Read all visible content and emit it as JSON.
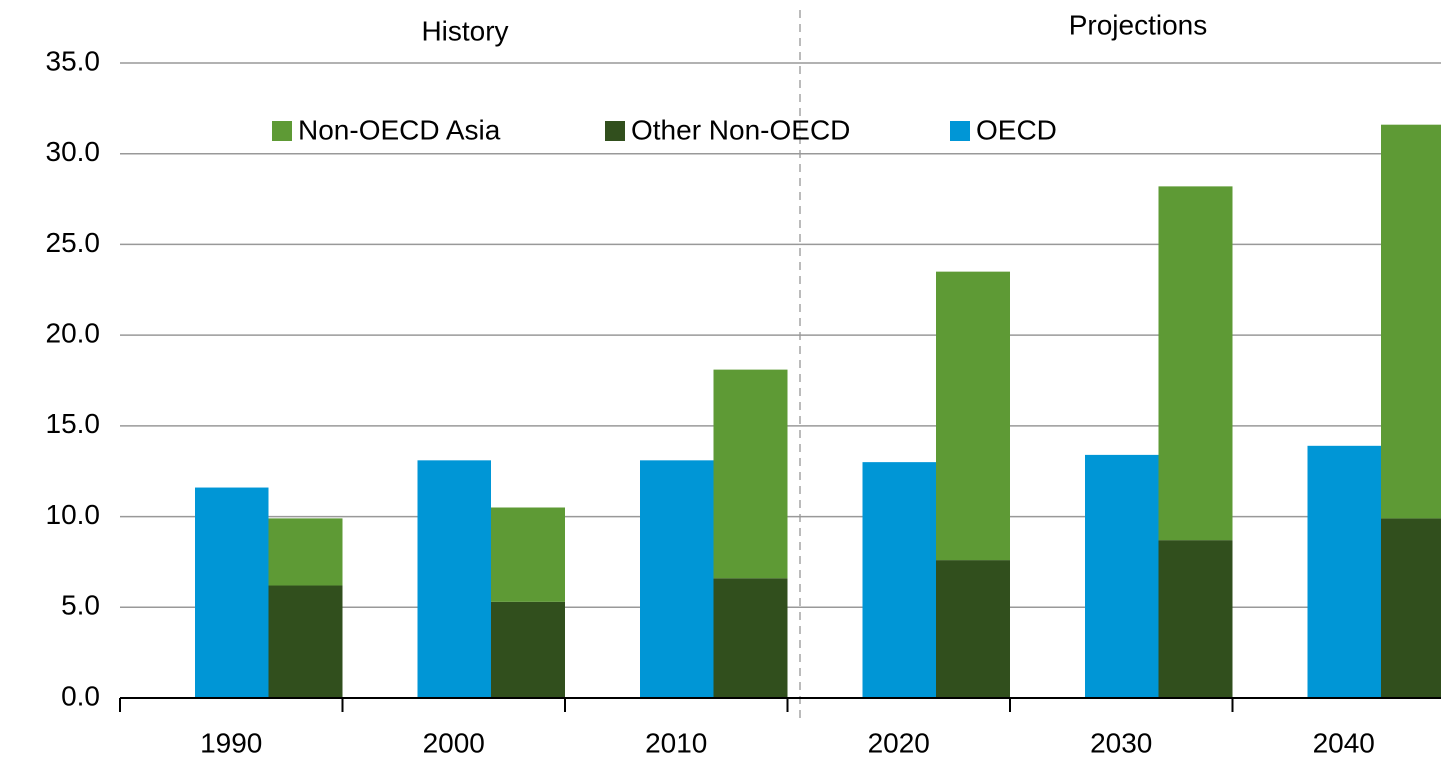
{
  "chart_data": {
    "type": "bar",
    "annotations": [
      "History",
      "Projections"
    ],
    "categories": [
      "1990",
      "2000",
      "2010",
      "2020",
      "2030",
      "2040"
    ],
    "series": [
      {
        "name": "Non-OECD Asia",
        "color": "#5e9a35",
        "values": [
          3.7,
          5.2,
          11.5,
          15.9,
          19.5,
          21.7
        ]
      },
      {
        "name": "Other Non-OECD",
        "color": "#314f1d",
        "values": [
          6.2,
          5.3,
          6.6,
          7.6,
          8.7,
          9.9
        ]
      },
      {
        "name": "OECD",
        "color": "#0096d6",
        "values": [
          11.6,
          13.1,
          13.1,
          13.0,
          13.4,
          13.9
        ]
      }
    ],
    "ylim": [
      0,
      35
    ],
    "yticks": [
      {
        "value": 0,
        "label": "0.0"
      },
      {
        "value": 5,
        "label": "5.0"
      },
      {
        "value": 10,
        "label": "10.0"
      },
      {
        "value": 15,
        "label": "15.0"
      },
      {
        "value": 20,
        "label": "20.0"
      },
      {
        "value": 25,
        "label": "25.0"
      },
      {
        "value": 30,
        "label": "30.0"
      },
      {
        "value": 35,
        "label": "35.0"
      }
    ],
    "grid": true
  }
}
